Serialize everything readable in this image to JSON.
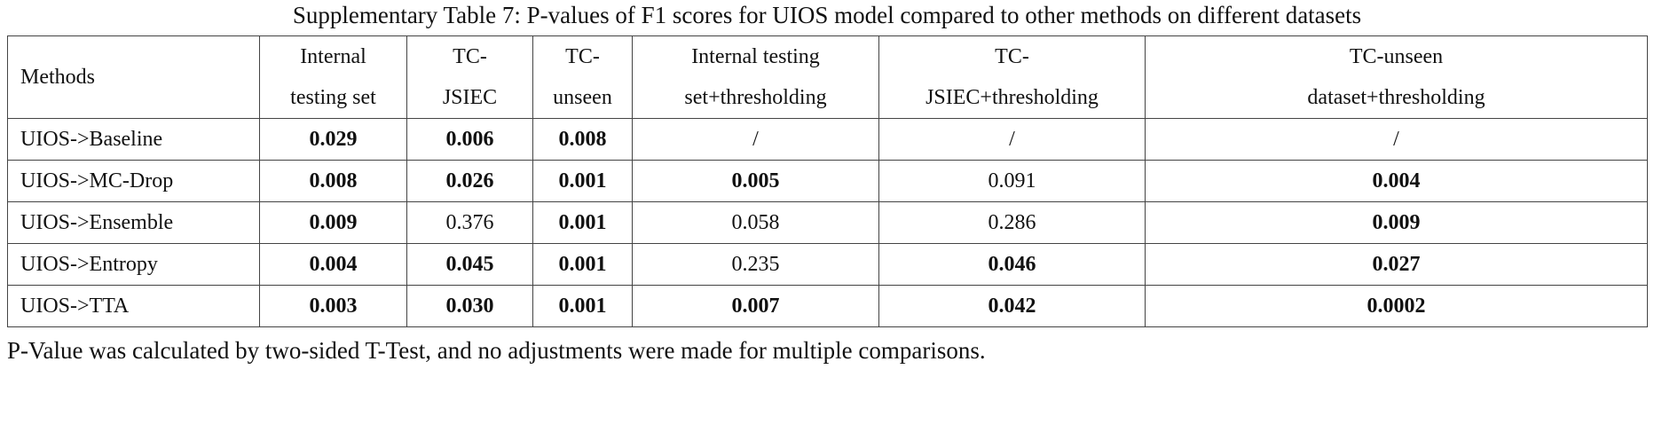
{
  "title": "Supplementary Table 7: P-values of F1 scores for UIOS model compared to other methods on different datasets",
  "table": {
    "header": [
      "Methods",
      "Internal\ntesting set",
      "TC-\nJSIEC",
      "TC-\nunseen",
      "Internal testing\nset+thresholding",
      "TC-\nJSIEC+thresholding",
      "TC-unseen\ndataset+thresholding"
    ],
    "rows": [
      [
        "UIOS->Baseline",
        "0.029",
        "0.006",
        "0.008",
        "/",
        "/",
        "/"
      ],
      [
        "UIOS->MC-Drop",
        "0.008",
        "0.026",
        "0.001",
        "0.005",
        "0.091",
        "0.004"
      ],
      [
        "UIOS->Ensemble",
        "0.009",
        "0.376",
        "0.001",
        "0.058",
        "0.286",
        "0.009"
      ],
      [
        "UIOS->Entropy",
        "0.004",
        "0.045",
        "0.001",
        "0.235",
        "0.046",
        "0.027"
      ],
      [
        "UIOS->TTA",
        "0.003",
        "0.030",
        "0.001",
        "0.007",
        "0.042",
        "0.0002"
      ]
    ],
    "bold": [
      [
        false,
        true,
        true,
        true,
        false,
        false,
        false
      ],
      [
        false,
        true,
        true,
        true,
        true,
        false,
        true
      ],
      [
        false,
        true,
        false,
        true,
        false,
        false,
        true
      ],
      [
        false,
        true,
        true,
        true,
        false,
        true,
        true
      ],
      [
        false,
        true,
        true,
        true,
        true,
        true,
        true
      ]
    ]
  },
  "footnote": "P-Value was calculated by two-sided T-Test, and no adjustments were made for multiple comparisons."
}
